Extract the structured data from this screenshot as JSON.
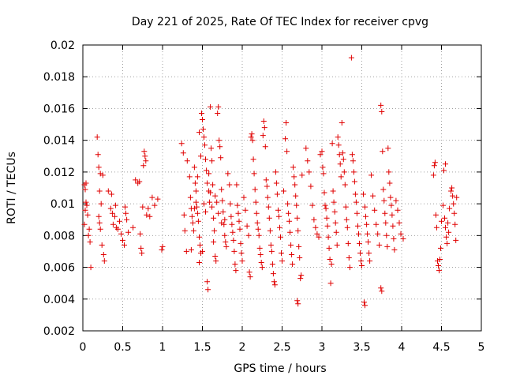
{
  "chart_data": {
    "type": "scatter",
    "title": "Day 221 of 2025, Rate Of TEC Index for receiver cpvg",
    "xlabel": "GPS time / hours",
    "ylabel": "ROTI / TECUs",
    "xlim": [
      0,
      5
    ],
    "ylim": [
      0.002,
      0.02
    ],
    "xticks": [
      0,
      0.5,
      1,
      1.5,
      2,
      2.5,
      3,
      3.5,
      4,
      4.5,
      5
    ],
    "xtick_labels": [
      "0",
      "0.5",
      "1",
      "1.5",
      "2",
      "2.5",
      "3",
      "3.5",
      "4",
      "4.5",
      "5"
    ],
    "yticks": [
      0.002,
      0.004,
      0.006,
      0.008,
      0.01,
      0.012,
      0.014,
      0.016,
      0.018,
      0.02
    ],
    "ytick_labels": [
      "0.002",
      "0.004",
      "0.006",
      "0.008",
      "0.01",
      "0.012",
      "0.014",
      "0.016",
      "0.018",
      "0.02"
    ],
    "grid": true,
    "marker": "plus",
    "color": "#e00000",
    "points": [
      [
        0.02,
        0.0112
      ],
      [
        0.03,
        0.0109
      ],
      [
        0.04,
        0.0101
      ],
      [
        0.03,
        0.0096
      ],
      [
        0.05,
        0.0099
      ],
      [
        0.06,
        0.0093
      ],
      [
        0.07,
        0.008
      ],
      [
        0.08,
        0.0084
      ],
      [
        0.1,
        0.006
      ],
      [
        0.09,
        0.0076
      ],
      [
        0.02,
        0.0087
      ],
      [
        0.04,
        0.0113
      ],
      [
        0.18,
        0.0142
      ],
      [
        0.19,
        0.0131
      ],
      [
        0.2,
        0.0123
      ],
      [
        0.22,
        0.0119
      ],
      [
        0.21,
        0.0108
      ],
      [
        0.23,
        0.01
      ],
      [
        0.2,
        0.0092
      ],
      [
        0.22,
        0.0084
      ],
      [
        0.24,
        0.0074
      ],
      [
        0.26,
        0.0068
      ],
      [
        0.27,
        0.0064
      ],
      [
        0.25,
        0.0118
      ],
      [
        0.21,
        0.0088
      ],
      [
        0.32,
        0.0108
      ],
      [
        0.35,
        0.0097
      ],
      [
        0.37,
        0.0094
      ],
      [
        0.38,
        0.0087
      ],
      [
        0.4,
        0.0092
      ],
      [
        0.42,
        0.0085
      ],
      [
        0.44,
        0.0084
      ],
      [
        0.46,
        0.0089
      ],
      [
        0.48,
        0.0081
      ],
      [
        0.5,
        0.0077
      ],
      [
        0.52,
        0.0074
      ],
      [
        0.53,
        0.0098
      ],
      [
        0.55,
        0.009
      ],
      [
        0.57,
        0.0082
      ],
      [
        0.54,
        0.0094
      ],
      [
        0.41,
        0.0099
      ],
      [
        0.36,
        0.0106
      ],
      [
        0.63,
        0.0085
      ],
      [
        0.66,
        0.0115
      ],
      [
        0.69,
        0.0113
      ],
      [
        0.71,
        0.0114
      ],
      [
        0.72,
        0.0081
      ],
      [
        0.73,
        0.0072
      ],
      [
        0.74,
        0.0069
      ],
      [
        0.76,
        0.0124
      ],
      [
        0.77,
        0.0133
      ],
      [
        0.78,
        0.013
      ],
      [
        0.79,
        0.0127
      ],
      [
        0.8,
        0.0093
      ],
      [
        0.82,
        0.0097
      ],
      [
        0.84,
        0.0092
      ],
      [
        0.87,
        0.0104
      ],
      [
        0.9,
        0.0099
      ],
      [
        0.94,
        0.0103
      ],
      [
        0.99,
        0.0071
      ],
      [
        1.0,
        0.0073
      ],
      [
        0.75,
        0.0098
      ],
      [
        1.24,
        0.0138
      ],
      [
        1.26,
        0.0132
      ],
      [
        1.27,
        0.0093
      ],
      [
        1.28,
        0.0083
      ],
      [
        1.3,
        0.007
      ],
      [
        1.31,
        0.0127
      ],
      [
        1.34,
        0.0117
      ],
      [
        1.35,
        0.0104
      ],
      [
        1.36,
        0.0097
      ],
      [
        1.37,
        0.0092
      ],
      [
        1.38,
        0.0088
      ],
      [
        1.39,
        0.0083
      ],
      [
        1.4,
        0.0123
      ],
      [
        1.41,
        0.0113
      ],
      [
        1.42,
        0.0108
      ],
      [
        1.43,
        0.0098
      ],
      [
        1.44,
        0.0094
      ],
      [
        1.45,
        0.0089
      ],
      [
        1.46,
        0.0079
      ],
      [
        1.47,
        0.0074
      ],
      [
        1.48,
        0.0069
      ],
      [
        1.49,
        0.0157
      ],
      [
        1.5,
        0.0153
      ],
      [
        1.51,
        0.0147
      ],
      [
        1.52,
        0.0142
      ],
      [
        1.53,
        0.0137
      ],
      [
        1.54,
        0.0128
      ],
      [
        1.55,
        0.0121
      ],
      [
        1.56,
        0.0051
      ],
      [
        1.57,
        0.0046
      ],
      [
        1.58,
        0.0108
      ],
      [
        1.59,
        0.0101
      ],
      [
        1.6,
        0.0161
      ],
      [
        1.61,
        0.0135
      ],
      [
        1.62,
        0.0127
      ],
      [
        1.63,
        0.0112
      ],
      [
        1.64,
        0.0091
      ],
      [
        1.65,
        0.0083
      ],
      [
        1.66,
        0.0067
      ],
      [
        1.67,
        0.0064
      ],
      [
        1.68,
        0.0101
      ],
      [
        1.69,
        0.0157
      ],
      [
        1.7,
        0.0161
      ],
      [
        1.71,
        0.014
      ],
      [
        1.72,
        0.0136
      ],
      [
        1.73,
        0.0129
      ],
      [
        1.74,
        0.0109
      ],
      [
        1.75,
        0.0102
      ],
      [
        1.76,
        0.0095
      ],
      [
        1.77,
        0.0087
      ],
      [
        1.78,
        0.008
      ],
      [
        1.79,
        0.0076
      ],
      [
        1.8,
        0.0073
      ],
      [
        1.46,
        0.0145
      ],
      [
        1.48,
        0.013
      ],
      [
        1.44,
        0.0117
      ],
      [
        1.52,
        0.01
      ],
      [
        1.54,
        0.0095
      ],
      [
        1.42,
        0.0101
      ],
      [
        1.4,
        0.0097
      ],
      [
        1.56,
        0.0113
      ],
      [
        1.58,
        0.0119
      ],
      [
        1.62,
        0.0098
      ],
      [
        1.66,
        0.0105
      ],
      [
        1.7,
        0.0094
      ],
      [
        1.74,
        0.0088
      ],
      [
        1.78,
        0.009
      ],
      [
        1.6,
        0.0107
      ],
      [
        1.64,
        0.0076
      ],
      [
        1.5,
        0.007
      ],
      [
        1.46,
        0.0063
      ],
      [
        1.36,
        0.0071
      ],
      [
        1.82,
        0.0119
      ],
      [
        1.84,
        0.0112
      ],
      [
        1.85,
        0.01
      ],
      [
        1.86,
        0.0092
      ],
      [
        1.87,
        0.0087
      ],
      [
        1.88,
        0.0082
      ],
      [
        1.89,
        0.0077
      ],
      [
        1.9,
        0.007
      ],
      [
        1.91,
        0.0062
      ],
      [
        1.92,
        0.0058
      ],
      [
        1.93,
        0.0112
      ],
      [
        1.94,
        0.0099
      ],
      [
        1.95,
        0.0094
      ],
      [
        1.96,
        0.0089
      ],
      [
        1.97,
        0.0084
      ],
      [
        1.98,
        0.0075
      ],
      [
        1.99,
        0.0069
      ],
      [
        2.0,
        0.0064
      ],
      [
        2.02,
        0.0104
      ],
      [
        2.04,
        0.0096
      ],
      [
        2.06,
        0.0086
      ],
      [
        2.08,
        0.008
      ],
      [
        2.09,
        0.0057
      ],
      [
        2.1,
        0.0054
      ],
      [
        2.11,
        0.0142
      ],
      [
        2.12,
        0.0144
      ],
      [
        2.13,
        0.014
      ],
      [
        2.14,
        0.0128
      ],
      [
        2.15,
        0.0119
      ],
      [
        2.16,
        0.0109
      ],
      [
        2.17,
        0.0101
      ],
      [
        2.18,
        0.0094
      ],
      [
        2.19,
        0.0088
      ],
      [
        2.2,
        0.0084
      ],
      [
        2.21,
        0.008
      ],
      [
        2.22,
        0.0072
      ],
      [
        2.23,
        0.0068
      ],
      [
        2.24,
        0.0063
      ],
      [
        2.25,
        0.006
      ],
      [
        2.26,
        0.0143
      ],
      [
        2.27,
        0.0152
      ],
      [
        2.28,
        0.0148
      ],
      [
        2.29,
        0.0136
      ],
      [
        2.3,
        0.0115
      ],
      [
        2.31,
        0.0111
      ],
      [
        2.32,
        0.0104
      ],
      [
        2.33,
        0.0098
      ],
      [
        2.34,
        0.0091
      ],
      [
        2.35,
        0.0083
      ],
      [
        2.36,
        0.0074
      ],
      [
        2.37,
        0.007
      ],
      [
        2.38,
        0.0062
      ],
      [
        2.39,
        0.0056
      ],
      [
        2.4,
        0.0051
      ],
      [
        2.41,
        0.0049
      ],
      [
        2.42,
        0.012
      ],
      [
        2.43,
        0.0113
      ],
      [
        2.44,
        0.0106
      ],
      [
        2.45,
        0.0096
      ],
      [
        2.46,
        0.0092
      ],
      [
        2.47,
        0.0085
      ],
      [
        2.48,
        0.0079
      ],
      [
        2.49,
        0.0069
      ],
      [
        2.5,
        0.0064
      ],
      [
        2.52,
        0.0108
      ],
      [
        2.54,
        0.0141
      ],
      [
        2.55,
        0.0151
      ],
      [
        2.56,
        0.0133
      ],
      [
        2.57,
        0.01
      ],
      [
        2.58,
        0.0094
      ],
      [
        2.59,
        0.0089
      ],
      [
        2.6,
        0.0082
      ],
      [
        2.61,
        0.0074
      ],
      [
        2.62,
        0.0068
      ],
      [
        2.63,
        0.0062
      ],
      [
        2.64,
        0.0123
      ],
      [
        2.65,
        0.0117
      ],
      [
        2.66,
        0.0112
      ],
      [
        2.67,
        0.0105
      ],
      [
        2.68,
        0.0099
      ],
      [
        2.69,
        0.0091
      ],
      [
        2.7,
        0.0083
      ],
      [
        2.71,
        0.0073
      ],
      [
        2.72,
        0.0066
      ],
      [
        2.73,
        0.0053
      ],
      [
        2.74,
        0.0055
      ],
      [
        2.75,
        0.0118
      ],
      [
        2.69,
        0.0039
      ],
      [
        2.7,
        0.0037
      ],
      [
        2.8,
        0.0135
      ],
      [
        2.82,
        0.0127
      ],
      [
        2.84,
        0.012
      ],
      [
        2.86,
        0.0111
      ],
      [
        2.88,
        0.0099
      ],
      [
        2.9,
        0.009
      ],
      [
        2.92,
        0.0085
      ],
      [
        2.94,
        0.0081
      ],
      [
        2.96,
        0.0079
      ],
      [
        2.98,
        0.0131
      ],
      [
        3.0,
        0.0133
      ],
      [
        3.01,
        0.0123
      ],
      [
        3.02,
        0.0119
      ],
      [
        3.03,
        0.0107
      ],
      [
        3.04,
        0.0099
      ],
      [
        3.05,
        0.0097
      ],
      [
        3.06,
        0.0091
      ],
      [
        3.07,
        0.0086
      ],
      [
        3.08,
        0.0079
      ],
      [
        3.09,
        0.0072
      ],
      [
        3.1,
        0.0065
      ],
      [
        3.11,
        0.005
      ],
      [
        3.12,
        0.0062
      ],
      [
        3.13,
        0.0138
      ],
      [
        3.14,
        0.0108
      ],
      [
        3.15,
        0.0101
      ],
      [
        3.16,
        0.0095
      ],
      [
        3.17,
        0.0088
      ],
      [
        3.18,
        0.0082
      ],
      [
        3.19,
        0.0074
      ],
      [
        3.2,
        0.0142
      ],
      [
        3.21,
        0.0137
      ],
      [
        3.22,
        0.0131
      ],
      [
        3.23,
        0.0125
      ],
      [
        3.24,
        0.0117
      ],
      [
        3.25,
        0.0151
      ],
      [
        3.26,
        0.0132
      ],
      [
        3.27,
        0.0128
      ],
      [
        3.28,
        0.012
      ],
      [
        3.29,
        0.0112
      ],
      [
        3.3,
        0.0098
      ],
      [
        3.31,
        0.009
      ],
      [
        3.32,
        0.0085
      ],
      [
        3.33,
        0.0075
      ],
      [
        3.34,
        0.0066
      ],
      [
        3.35,
        0.006
      ],
      [
        3.37,
        0.0192
      ],
      [
        3.38,
        0.0131
      ],
      [
        3.39,
        0.0127
      ],
      [
        3.4,
        0.012
      ],
      [
        3.41,
        0.0114
      ],
      [
        3.42,
        0.0106
      ],
      [
        3.43,
        0.0101
      ],
      [
        3.44,
        0.0094
      ],
      [
        3.45,
        0.0086
      ],
      [
        3.46,
        0.0081
      ],
      [
        3.47,
        0.0075
      ],
      [
        3.48,
        0.0069
      ],
      [
        3.49,
        0.0064
      ],
      [
        3.5,
        0.0061
      ],
      [
        3.52,
        0.0106
      ],
      [
        3.54,
        0.0098
      ],
      [
        3.55,
        0.0092
      ],
      [
        3.56,
        0.0087
      ],
      [
        3.57,
        0.0081
      ],
      [
        3.58,
        0.0076
      ],
      [
        3.59,
        0.0069
      ],
      [
        3.6,
        0.0064
      ],
      [
        3.53,
        0.0038
      ],
      [
        3.54,
        0.0036
      ],
      [
        3.62,
        0.0118
      ],
      [
        3.64,
        0.0105
      ],
      [
        3.66,
        0.0096
      ],
      [
        3.68,
        0.0087
      ],
      [
        3.7,
        0.0081
      ],
      [
        3.72,
        0.0074
      ],
      [
        3.74,
        0.0162
      ],
      [
        3.75,
        0.0158
      ],
      [
        3.76,
        0.0133
      ],
      [
        3.77,
        0.0109
      ],
      [
        3.78,
        0.0102
      ],
      [
        3.79,
        0.0094
      ],
      [
        3.8,
        0.0088
      ],
      [
        3.81,
        0.008
      ],
      [
        3.82,
        0.0073
      ],
      [
        3.84,
        0.012
      ],
      [
        3.85,
        0.0113
      ],
      [
        3.86,
        0.0104
      ],
      [
        3.87,
        0.0099
      ],
      [
        3.88,
        0.0093
      ],
      [
        3.89,
        0.0086
      ],
      [
        3.9,
        0.0078
      ],
      [
        3.91,
        0.0071
      ],
      [
        3.93,
        0.0102
      ],
      [
        3.95,
        0.0096
      ],
      [
        3.97,
        0.0088
      ],
      [
        3.99,
        0.0081
      ],
      [
        4.02,
        0.0078
      ],
      [
        3.74,
        0.0047
      ],
      [
        3.75,
        0.0045
      ],
      [
        3.83,
        0.0135
      ],
      [
        4.4,
        0.0118
      ],
      [
        4.41,
        0.0124
      ],
      [
        4.42,
        0.0126
      ],
      [
        4.43,
        0.0093
      ],
      [
        4.44,
        0.0085
      ],
      [
        4.45,
        0.0064
      ],
      [
        4.46,
        0.0061
      ],
      [
        4.47,
        0.0058
      ],
      [
        4.48,
        0.0065
      ],
      [
        4.49,
        0.0072
      ],
      [
        4.5,
        0.0089
      ],
      [
        4.52,
        0.0099
      ],
      [
        4.54,
        0.0091
      ],
      [
        4.55,
        0.0085
      ],
      [
        4.56,
        0.0079
      ],
      [
        4.57,
        0.0075
      ],
      [
        4.58,
        0.0088
      ],
      [
        4.6,
        0.0097
      ],
      [
        4.62,
        0.0108
      ],
      [
        4.63,
        0.011
      ],
      [
        4.64,
        0.0105
      ],
      [
        4.65,
        0.01
      ],
      [
        4.66,
        0.0094
      ],
      [
        4.67,
        0.0087
      ],
      [
        4.68,
        0.0077
      ],
      [
        4.69,
        0.0104
      ],
      [
        4.55,
        0.0125
      ],
      [
        4.53,
        0.0121
      ],
      [
        4.59,
        0.0082
      ]
    ]
  }
}
